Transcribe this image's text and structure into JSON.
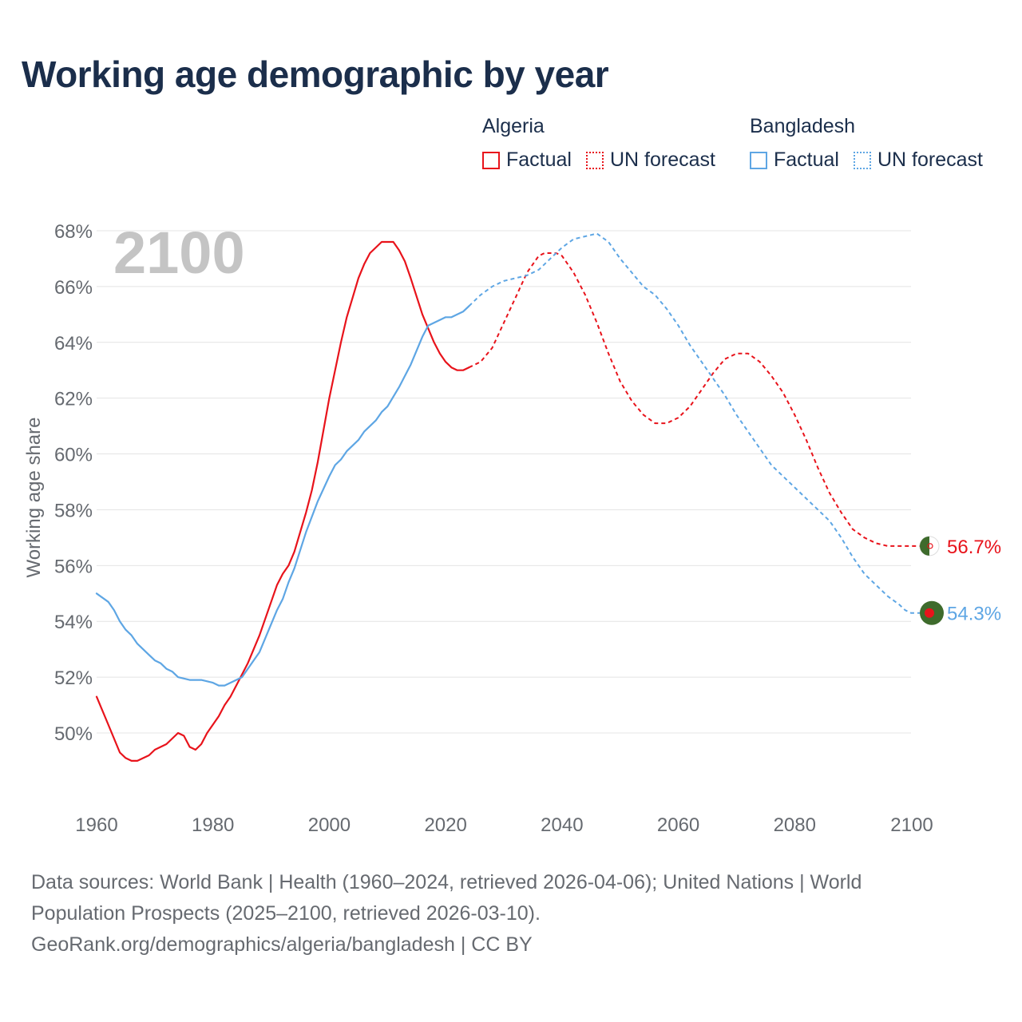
{
  "title": "Working age demographic by year",
  "legend": {
    "groups": [
      {
        "country": "Algeria",
        "color": "#e8131b",
        "factual_label": "Factual",
        "forecast_label": "UN forecast"
      },
      {
        "country": "Bangladesh",
        "color": "#5ea6e4",
        "factual_label": "Factual",
        "forecast_label": "UN forecast"
      }
    ]
  },
  "chart_data": {
    "type": "line",
    "title": "Working age demographic by year",
    "ylabel": "Working age share",
    "xlabel": "",
    "xlim": [
      1960,
      2100
    ],
    "ylim": [
      48,
      68.5
    ],
    "x_ticks": [
      1960,
      1980,
      2000,
      2020,
      2040,
      2060,
      2080,
      2100
    ],
    "x_tick_labels": [
      "1960",
      "1980",
      "2000",
      "2020",
      "2040",
      "2060",
      "2080",
      "2100"
    ],
    "y_ticks": [
      50,
      52,
      54,
      56,
      58,
      60,
      62,
      64,
      66,
      68
    ],
    "y_tick_labels": [
      "50%",
      "52%",
      "54%",
      "56%",
      "58%",
      "60%",
      "62%",
      "64%",
      "66%",
      "68%"
    ],
    "year_watermark": "2100",
    "factual_end_year": 2024,
    "series": [
      {
        "name": "Algeria",
        "color": "#e8131b",
        "end_label": "56.7%",
        "points": [
          [
            1960,
            51.3
          ],
          [
            1962,
            50.3
          ],
          [
            1964,
            49.3
          ],
          [
            1965,
            49.1
          ],
          [
            1966,
            49.0
          ],
          [
            1967,
            49.0
          ],
          [
            1969,
            49.2
          ],
          [
            1970,
            49.4
          ],
          [
            1972,
            49.6
          ],
          [
            1974,
            50.0
          ],
          [
            1975,
            49.9
          ],
          [
            1976,
            49.5
          ],
          [
            1977,
            49.4
          ],
          [
            1978,
            49.6
          ],
          [
            1979,
            50.0
          ],
          [
            1981,
            50.6
          ],
          [
            1982,
            51.0
          ],
          [
            1983,
            51.3
          ],
          [
            1984,
            51.7
          ],
          [
            1986,
            52.5
          ],
          [
            1988,
            53.5
          ],
          [
            1990,
            54.7
          ],
          [
            1991,
            55.3
          ],
          [
            1992,
            55.7
          ],
          [
            1993,
            56.0
          ],
          [
            1994,
            56.5
          ],
          [
            1996,
            57.9
          ],
          [
            1997,
            58.7
          ],
          [
            1998,
            59.7
          ],
          [
            2000,
            62.0
          ],
          [
            2002,
            64.0
          ],
          [
            2003,
            64.9
          ],
          [
            2004,
            65.6
          ],
          [
            2005,
            66.3
          ],
          [
            2006,
            66.8
          ],
          [
            2007,
            67.2
          ],
          [
            2009,
            67.6
          ],
          [
            2011,
            67.6
          ],
          [
            2012,
            67.3
          ],
          [
            2013,
            66.9
          ],
          [
            2014,
            66.3
          ],
          [
            2016,
            65.0
          ],
          [
            2017,
            64.5
          ],
          [
            2018,
            64.0
          ],
          [
            2019,
            63.6
          ],
          [
            2020,
            63.3
          ],
          [
            2021,
            63.1
          ],
          [
            2022,
            63.0
          ],
          [
            2023,
            63.0
          ],
          [
            2024,
            63.1
          ],
          [
            2026,
            63.3
          ],
          [
            2028,
            63.8
          ],
          [
            2030,
            64.7
          ],
          [
            2032,
            65.6
          ],
          [
            2034,
            66.5
          ],
          [
            2036,
            67.1
          ],
          [
            2037,
            67.2
          ],
          [
            2039,
            67.2
          ],
          [
            2040,
            67.1
          ],
          [
            2042,
            66.5
          ],
          [
            2044,
            65.7
          ],
          [
            2046,
            64.7
          ],
          [
            2048,
            63.6
          ],
          [
            2050,
            62.6
          ],
          [
            2052,
            61.9
          ],
          [
            2054,
            61.4
          ],
          [
            2056,
            61.1
          ],
          [
            2058,
            61.1
          ],
          [
            2060,
            61.3
          ],
          [
            2062,
            61.7
          ],
          [
            2064,
            62.3
          ],
          [
            2066,
            62.9
          ],
          [
            2068,
            63.4
          ],
          [
            2070,
            63.6
          ],
          [
            2072,
            63.6
          ],
          [
            2074,
            63.3
          ],
          [
            2076,
            62.8
          ],
          [
            2078,
            62.2
          ],
          [
            2080,
            61.4
          ],
          [
            2082,
            60.5
          ],
          [
            2084,
            59.5
          ],
          [
            2086,
            58.6
          ],
          [
            2088,
            57.9
          ],
          [
            2090,
            57.3
          ],
          [
            2092,
            57.0
          ],
          [
            2094,
            56.8
          ],
          [
            2096,
            56.7
          ],
          [
            2100,
            56.7
          ]
        ]
      },
      {
        "name": "Bangladesh",
        "color": "#5ea6e4",
        "end_label": "54.3%",
        "points": [
          [
            1960,
            55.0
          ],
          [
            1962,
            54.7
          ],
          [
            1963,
            54.4
          ],
          [
            1964,
            54.0
          ],
          [
            1965,
            53.7
          ],
          [
            1966,
            53.5
          ],
          [
            1967,
            53.2
          ],
          [
            1968,
            53.0
          ],
          [
            1969,
            52.8
          ],
          [
            1970,
            52.6
          ],
          [
            1971,
            52.5
          ],
          [
            1972,
            52.3
          ],
          [
            1973,
            52.2
          ],
          [
            1974,
            52.0
          ],
          [
            1976,
            51.9
          ],
          [
            1978,
            51.9
          ],
          [
            1980,
            51.8
          ],
          [
            1981,
            51.7
          ],
          [
            1982,
            51.7
          ],
          [
            1984,
            51.9
          ],
          [
            1985,
            52.0
          ],
          [
            1986,
            52.3
          ],
          [
            1988,
            52.9
          ],
          [
            1989,
            53.4
          ],
          [
            1990,
            53.9
          ],
          [
            1991,
            54.4
          ],
          [
            1992,
            54.8
          ],
          [
            1993,
            55.4
          ],
          [
            1994,
            55.9
          ],
          [
            1996,
            57.2
          ],
          [
            1998,
            58.3
          ],
          [
            2000,
            59.2
          ],
          [
            2001,
            59.6
          ],
          [
            2002,
            59.8
          ],
          [
            2003,
            60.1
          ],
          [
            2005,
            60.5
          ],
          [
            2006,
            60.8
          ],
          [
            2008,
            61.2
          ],
          [
            2009,
            61.5
          ],
          [
            2010,
            61.7
          ],
          [
            2012,
            62.4
          ],
          [
            2014,
            63.2
          ],
          [
            2016,
            64.2
          ],
          [
            2017,
            64.6
          ],
          [
            2019,
            64.8
          ],
          [
            2020,
            64.9
          ],
          [
            2021,
            64.9
          ],
          [
            2023,
            65.1
          ],
          [
            2024,
            65.3
          ],
          [
            2026,
            65.7
          ],
          [
            2028,
            66.0
          ],
          [
            2030,
            66.2
          ],
          [
            2032,
            66.3
          ],
          [
            2034,
            66.4
          ],
          [
            2036,
            66.6
          ],
          [
            2038,
            67.0
          ],
          [
            2040,
            67.4
          ],
          [
            2042,
            67.7
          ],
          [
            2044,
            67.8
          ],
          [
            2046,
            67.9
          ],
          [
            2048,
            67.6
          ],
          [
            2050,
            67.0
          ],
          [
            2052,
            66.5
          ],
          [
            2054,
            66.0
          ],
          [
            2056,
            65.7
          ],
          [
            2058,
            65.2
          ],
          [
            2060,
            64.6
          ],
          [
            2062,
            63.9
          ],
          [
            2064,
            63.3
          ],
          [
            2066,
            62.7
          ],
          [
            2068,
            62.1
          ],
          [
            2070,
            61.4
          ],
          [
            2072,
            60.8
          ],
          [
            2074,
            60.2
          ],
          [
            2076,
            59.6
          ],
          [
            2078,
            59.2
          ],
          [
            2080,
            58.8
          ],
          [
            2082,
            58.4
          ],
          [
            2084,
            58.0
          ],
          [
            2086,
            57.6
          ],
          [
            2088,
            57.0
          ],
          [
            2090,
            56.3
          ],
          [
            2092,
            55.7
          ],
          [
            2094,
            55.3
          ],
          [
            2096,
            54.9
          ],
          [
            2098,
            54.6
          ],
          [
            2099,
            54.4
          ],
          [
            2100,
            54.3
          ]
        ]
      }
    ]
  },
  "footer": {
    "line1": "Data sources: World Bank | Health (1960–2024, retrieved 2026-04-06); United Nations | World",
    "line2": "Population Prospects (2025–2100, retrieved 2026-03-10).",
    "line3": "GeoRank.org/demographics/algeria/bangladesh | CC BY"
  }
}
